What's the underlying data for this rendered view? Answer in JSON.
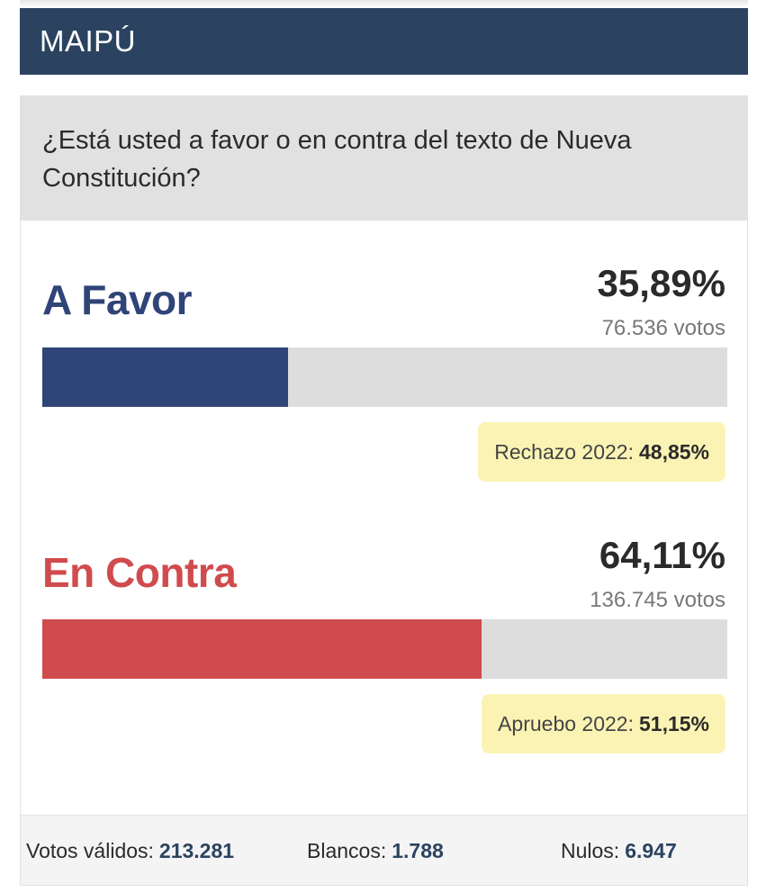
{
  "header": {
    "title": "MAIPÚ"
  },
  "question": "¿Está usted a favor o en contra del texto de Nueva Constitución?",
  "options": [
    {
      "label": "A Favor",
      "percent": "35,89%",
      "votes": "76.536 votos",
      "share": 0.3589,
      "color": "#2f4477",
      "note_label": "Rechazo 2022:",
      "note_value": "48,85%"
    },
    {
      "label": "En Contra",
      "percent": "64,11%",
      "votes": "136.745 votos",
      "share": 0.6411,
      "color": "#d04b4d",
      "note_label": "Apruebo 2022:",
      "note_value": "51,15%"
    }
  ],
  "footer": {
    "valid_label": "Votos válidos:",
    "valid_value": "213.281",
    "blank_label": "Blancos:",
    "blank_value": "1.788",
    "null_label": "Nulos:",
    "null_value": "6.947"
  }
}
